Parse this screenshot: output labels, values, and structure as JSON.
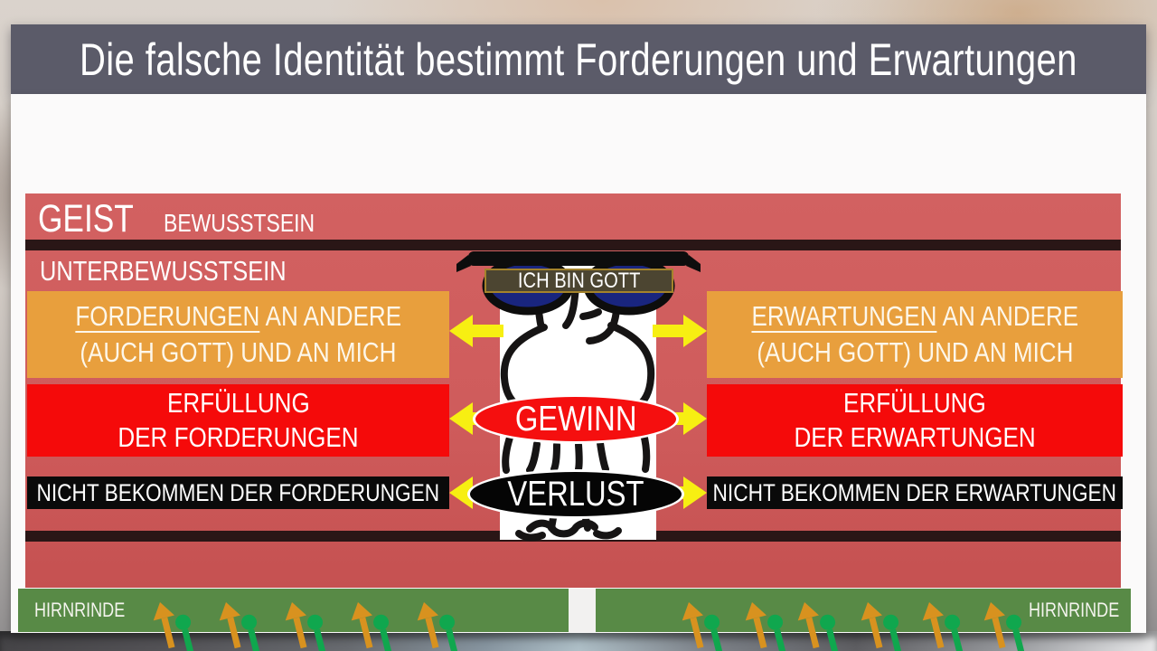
{
  "title": "Die falsche Identität bestimmt Forderungen und Erwartungen",
  "panel": {
    "geist": "GEIST",
    "bewusstsein": "BEWUSSTSEIN",
    "unterbewusstsein": "UNTERBEWUSSTSEIN"
  },
  "left": {
    "claims_head": "FORDERUNGEN",
    "claims_tail": "AN ANDERE",
    "claims_line2": "(AUCH GOTT) UND AN MICH",
    "fulfil_line1": "ERFÜLLUNG",
    "fulfil_line2": "DER FORDERUNGEN",
    "notget": "NICHT BEKOMMEN DER FORDERUNGEN"
  },
  "right": {
    "claims_head": "ERWARTUNGEN",
    "claims_tail": "AN ANDERE",
    "claims_line2": "(AUCH GOTT) UND AN MICH",
    "fulfil_line1": "ERFÜLLUNG",
    "fulfil_line2": "DER ERWARTUNGEN",
    "notget": "NICHT BEKOMMEN DER ERWARTUNGEN"
  },
  "center": {
    "glasses_text": "ICH BIN GOTT",
    "gain": "GEWINN",
    "loss": "VERLUST"
  },
  "cortex": {
    "left_label": "HIRNRINDE",
    "right_label": "HIRNRINDE"
  },
  "colors": {
    "title_bar": "#5b5b69",
    "salmon": "#cf5c5c",
    "divider_stripe": "#2a1616",
    "orange_box": "#e89f3d",
    "red_box": "#f50a0a",
    "black_box": "#0a0a0a",
    "cortex_green": "#588a46",
    "arrow_yellow": "#f7ef12",
    "signal_orange": "#d8921f",
    "synapse_green": "#10a74e",
    "lens_blue": "#19257f"
  }
}
